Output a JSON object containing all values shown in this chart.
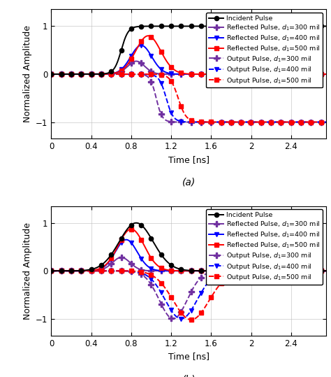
{
  "ylabel": "Normalized Amplitude",
  "xlabel": "Time [ns]",
  "xlim": [
    0,
    2.75
  ],
  "ylim": [
    -1.35,
    1.35
  ],
  "xticks": [
    0,
    0.4,
    0.8,
    1.2,
    1.6,
    2,
    2.4
  ],
  "xtick_labels": [
    "0",
    "0.4",
    "0.8",
    "1.2",
    "1.6",
    "2",
    "2.4"
  ],
  "yticks": [
    -1,
    0,
    1
  ],
  "incident_color": "#000000",
  "refl_300_color": "#7030A0",
  "refl_400_color": "#0000FF",
  "refl_500_color": "#FF0000",
  "out_300_color": "#7030A0",
  "out_400_color": "#0000FF",
  "out_500_color": "#FF0000",
  "legend_fontsize": 6.8,
  "axis_fontsize": 9,
  "tick_fontsize": 8.5,
  "label_fontsize": 10
}
